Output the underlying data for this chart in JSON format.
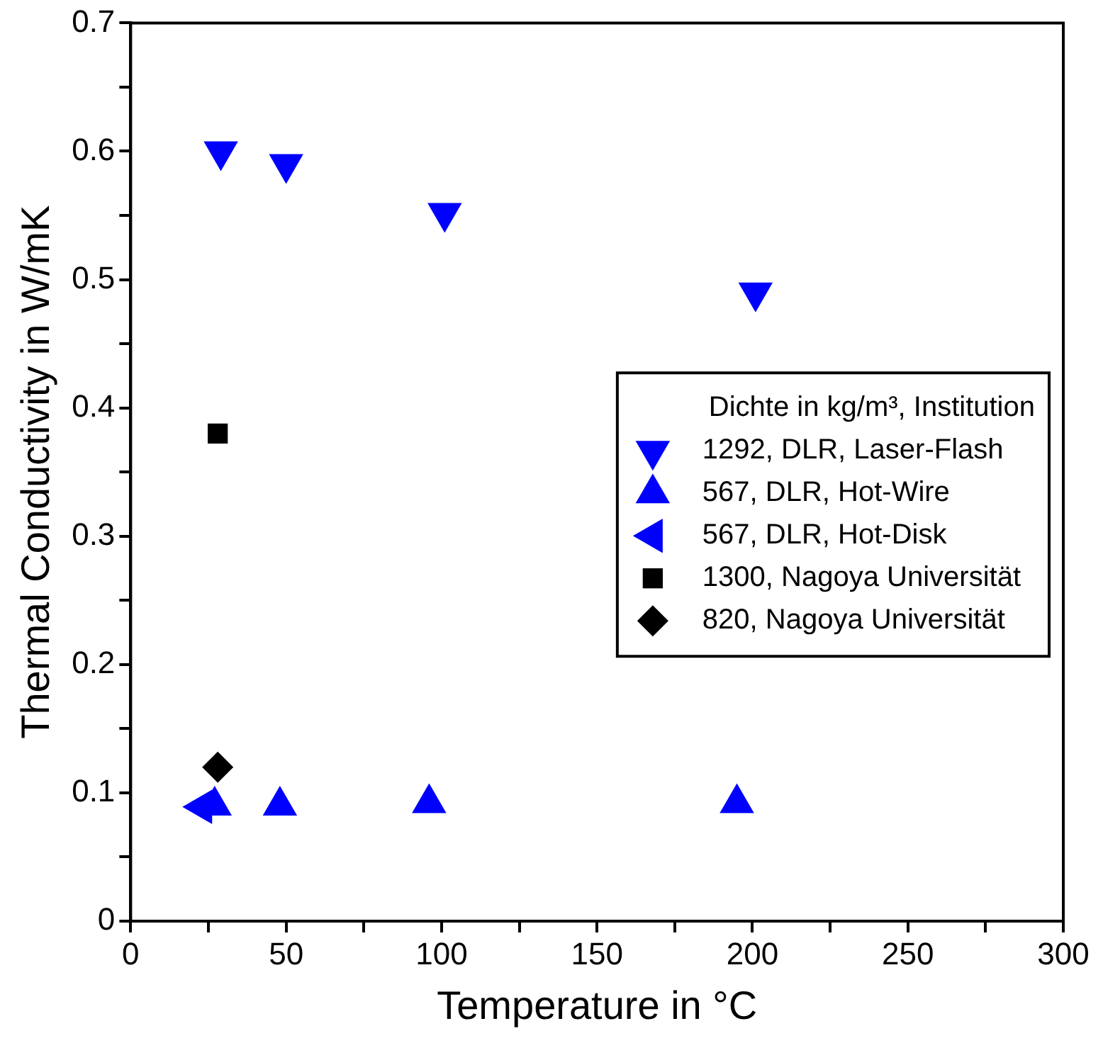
{
  "chart_data": {
    "type": "scatter",
    "xlabel": "Temperature in °C",
    "ylabel": "Thermal Conductivity in W/mK",
    "legend_title": "Dichte in kg/m³, Institution",
    "legend": "right",
    "grid": false,
    "xlim": [
      0,
      300
    ],
    "ylim": [
      0,
      0.7
    ],
    "xticks": [
      0,
      {
        "value": 25,
        "label": null
      },
      50,
      {
        "value": 75,
        "label": null
      },
      100,
      {
        "value": 125,
        "label": null
      },
      150,
      {
        "value": 175,
        "label": null
      },
      200,
      {
        "value": 225,
        "label": null
      },
      250,
      {
        "value": 275,
        "label": null
      },
      300
    ],
    "yticks": [
      0,
      {
        "value": 0.05,
        "label": null
      },
      0.1,
      {
        "value": 0.15,
        "label": null
      },
      0.2,
      {
        "value": 0.25,
        "label": null
      },
      0.3,
      {
        "value": 0.35,
        "label": null
      },
      0.4,
      {
        "value": 0.45,
        "label": null
      },
      0.5,
      {
        "value": 0.55,
        "label": null
      },
      0.6,
      {
        "value": 0.65,
        "label": null
      },
      0.7
    ],
    "series": [
      {
        "name": "1292, DLR, Laser-Flash",
        "color": "#0000ff",
        "marker": "triangle-down",
        "x": [
          29,
          50,
          101,
          201
        ],
        "values": [
          0.6,
          0.59,
          0.552,
          0.49
        ]
      },
      {
        "name": "567, DLR, Hot-Wire",
        "color": "#0000ff",
        "marker": "triangle",
        "x": [
          27,
          48,
          96,
          195
        ],
        "values": [
          0.09,
          0.09,
          0.092,
          0.092
        ]
      },
      {
        "name": "567, DLR, Hot-Disk",
        "color": "#0000ff",
        "marker": "triangle-left",
        "x": [
          23
        ],
        "values": [
          0.089
        ]
      },
      {
        "name": "1300, Nagoya Universität",
        "color": "#000000",
        "marker": "square",
        "x": [
          28
        ],
        "values": [
          0.38
        ]
      },
      {
        "name": "820, Nagoya Universität",
        "color": "#000000",
        "marker": "diamond",
        "x": [
          28
        ],
        "values": [
          0.12
        ]
      }
    ]
  }
}
